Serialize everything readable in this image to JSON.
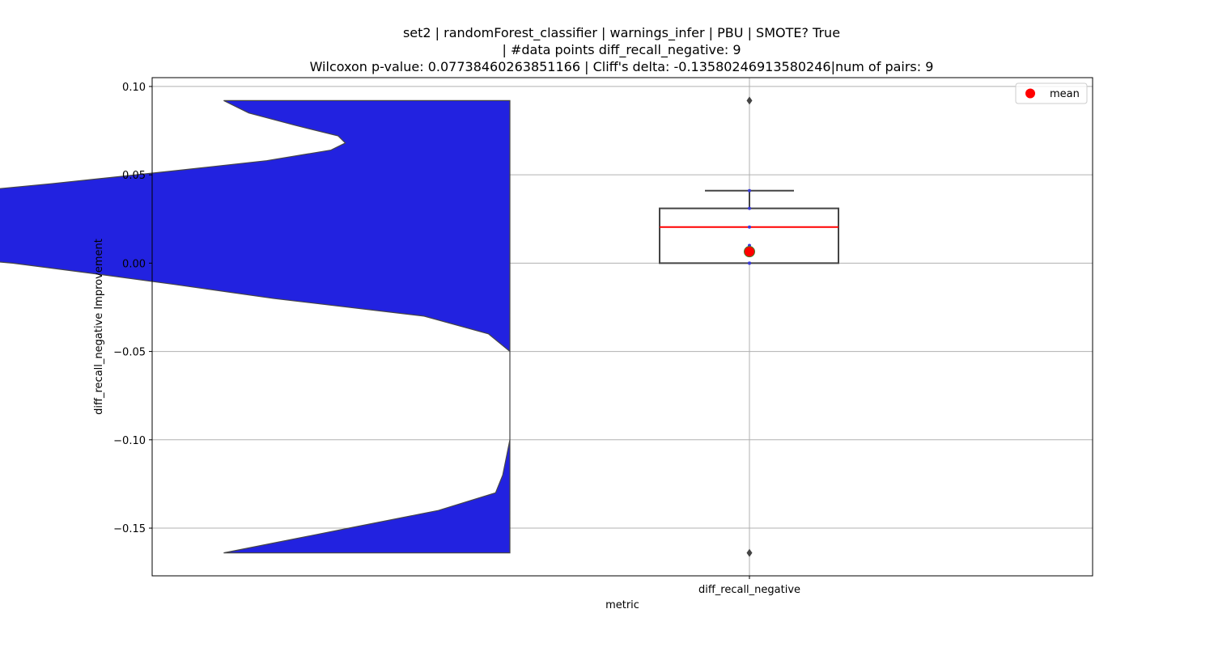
{
  "chart_data": {
    "type": "violin+box",
    "title_lines": [
      "set2 | randomForest_classifier | warnings_infer | PBU | SMOTE? True",
      "| #data points diff_recall_negative: 9",
      "Wilcoxon p-value: 0.07738460263851166 | Cliff's delta: -0.13580246913580246|num of pairs: 9"
    ],
    "xlabel": "metric",
    "ylabel": "diff_recall_negative Improvement",
    "categories": [
      "diff_recall_negative"
    ],
    "ylim": [
      -0.177,
      0.105
    ],
    "yticks": [
      0.1,
      0.05,
      0.0,
      -0.05,
      -0.1,
      -0.15
    ],
    "ytick_labels": [
      "0.10",
      "0.05",
      "0.00",
      "−0.05",
      "−0.10",
      "−0.15"
    ],
    "grid": true,
    "legend": {
      "placement": "top-right",
      "entries": [
        {
          "label": "mean",
          "color": "#ff0000",
          "marker": "circle"
        }
      ]
    },
    "violin": {
      "color": "#2222e0",
      "y_min": -0.164,
      "y_max": 0.092,
      "density_profile": [
        [
          0.092,
          0.2
        ],
        [
          0.085,
          0.27
        ],
        [
          0.078,
          0.4
        ],
        [
          0.072,
          0.52
        ],
        [
          0.068,
          0.54
        ],
        [
          0.064,
          0.5
        ],
        [
          0.058,
          0.32
        ],
        [
          0.052,
          0.05
        ],
        [
          0.045,
          -0.28
        ],
        [
          0.035,
          -0.8
        ],
        [
          0.02,
          -1.3
        ],
        [
          0.01,
          -1.05
        ],
        [
          0.004,
          -0.62
        ],
        [
          0.0,
          -0.39
        ],
        [
          -0.006,
          -0.16
        ],
        [
          -0.012,
          0.06
        ],
        [
          -0.02,
          0.34
        ],
        [
          -0.03,
          0.76
        ],
        [
          -0.04,
          0.94
        ],
        [
          -0.05,
          1.0
        ],
        [
          -0.075,
          1.0
        ],
        [
          -0.1,
          1.0
        ],
        [
          -0.12,
          0.98
        ],
        [
          -0.13,
          0.96
        ],
        [
          -0.14,
          0.8
        ],
        [
          -0.15,
          0.55
        ],
        [
          -0.158,
          0.35
        ],
        [
          -0.164,
          0.2
        ]
      ]
    },
    "box": {
      "q1": 0.0,
      "median": 0.0204,
      "q3": 0.031,
      "whisker_low": 0.0,
      "whisker_high": 0.041,
      "mean": 0.0065,
      "outliers": [
        0.092,
        -0.164
      ],
      "points": [
        0.041,
        0.031,
        0.0204,
        0.01,
        0.0,
        0.0
      ],
      "box_color": "#444444",
      "median_color": "#ff0000",
      "mean_color": "#ff0000"
    }
  }
}
